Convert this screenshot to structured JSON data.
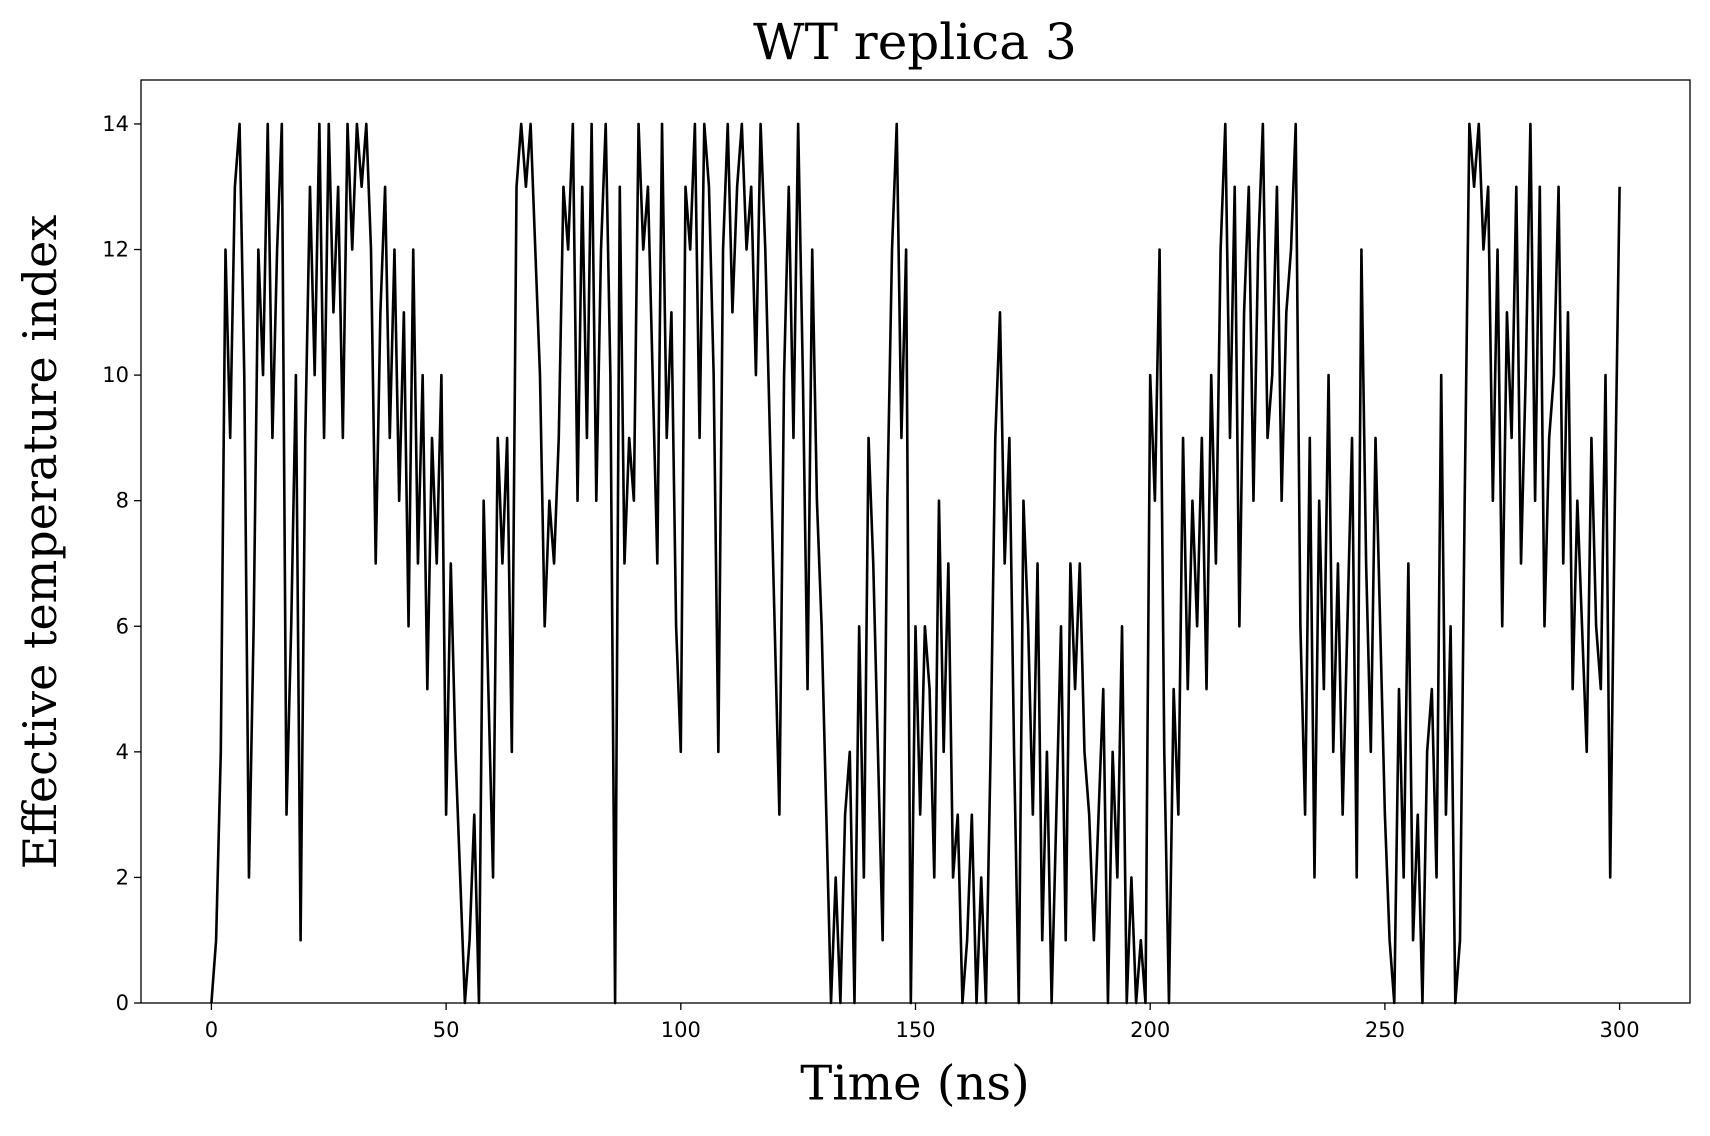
{
  "chart_data": {
    "type": "line",
    "title": "WT replica 3",
    "xlabel": "Time (ns)",
    "ylabel": "Effective temperature index",
    "color": "#000000",
    "xlim": [
      -15,
      315
    ],
    "ylim": [
      0,
      14.7
    ],
    "xticks": [
      0,
      50,
      100,
      150,
      200,
      250,
      300
    ],
    "yticks": [
      0,
      2,
      4,
      6,
      8,
      10,
      12,
      14
    ],
    "x": [
      0,
      1,
      2,
      3,
      4,
      5,
      6,
      7,
      8,
      9,
      10,
      11,
      12,
      13,
      14,
      15,
      16,
      17,
      18,
      19,
      20,
      21,
      22,
      23,
      24,
      25,
      26,
      27,
      28,
      29,
      30,
      31,
      32,
      33,
      34,
      35,
      36,
      37,
      38,
      39,
      40,
      41,
      42,
      43,
      44,
      45,
      46,
      47,
      48,
      49,
      50,
      51,
      52,
      53,
      54,
      55,
      56,
      57,
      58,
      59,
      60,
      61,
      62,
      63,
      64,
      65,
      66,
      67,
      68,
      69,
      70,
      71,
      72,
      73,
      74,
      75,
      76,
      77,
      78,
      79,
      80,
      81,
      82,
      83,
      84,
      85,
      86,
      87,
      88,
      89,
      90,
      91,
      92,
      93,
      94,
      95,
      96,
      97,
      98,
      99,
      100,
      101,
      102,
      103,
      104,
      105,
      106,
      107,
      108,
      109,
      110,
      111,
      112,
      113,
      114,
      115,
      116,
      117,
      118,
      119,
      120,
      121,
      122,
      123,
      124,
      125,
      126,
      127,
      128,
      129,
      130,
      131,
      132,
      133,
      134,
      135,
      136,
      137,
      138,
      139,
      140,
      141,
      142,
      143,
      144,
      145,
      146,
      147,
      148,
      149,
      150,
      151,
      152,
      153,
      154,
      155,
      156,
      157,
      158,
      159,
      160,
      161,
      162,
      163,
      164,
      165,
      166,
      167,
      168,
      169,
      170,
      171,
      172,
      173,
      174,
      175,
      176,
      177,
      178,
      179,
      180,
      181,
      182,
      183,
      184,
      185,
      186,
      187,
      188,
      189,
      190,
      191,
      192,
      193,
      194,
      195,
      196,
      197,
      198,
      199,
      200,
      201,
      202,
      203,
      204,
      205,
      206,
      207,
      208,
      209,
      210,
      211,
      212,
      213,
      214,
      215,
      216,
      217,
      218,
      219,
      220,
      221,
      222,
      223,
      224,
      225,
      226,
      227,
      228,
      229,
      230,
      231,
      232,
      233,
      234,
      235,
      236,
      237,
      238,
      239,
      240,
      241,
      242,
      243,
      244,
      245,
      246,
      247,
      248,
      249,
      250,
      251,
      252,
      253,
      254,
      255,
      256,
      257,
      258,
      259,
      260,
      261,
      262,
      263,
      264,
      265,
      266,
      267,
      268,
      269,
      270,
      271,
      272,
      273,
      274,
      275,
      276,
      277,
      278,
      279,
      280,
      281,
      282,
      283,
      284,
      285,
      286,
      287,
      288,
      289,
      290,
      291,
      292,
      293,
      294,
      295,
      296,
      297,
      298,
      299,
      300
    ],
    "values": [
      0,
      1,
      4,
      12,
      9,
      13,
      14,
      10,
      2,
      6,
      12,
      10,
      14,
      9,
      12,
      14,
      3,
      6,
      10,
      1,
      9,
      13,
      10,
      14,
      9,
      14,
      11,
      13,
      9,
      14,
      12,
      14,
      13,
      14,
      12,
      7,
      11,
      13,
      9,
      12,
      8,
      11,
      6,
      12,
      7,
      10,
      5,
      9,
      7,
      10,
      3,
      7,
      4,
      2,
      0,
      1,
      3,
      0,
      8,
      5,
      2,
      9,
      7,
      9,
      4,
      13,
      14,
      13,
      14,
      12,
      10,
      6,
      8,
      7,
      9,
      13,
      12,
      14,
      8,
      13,
      9,
      14,
      8,
      12,
      14,
      10,
      0,
      13,
      7,
      9,
      8,
      14,
      12,
      13,
      10,
      7,
      14,
      9,
      11,
      6,
      4,
      13,
      12,
      14,
      9,
      14,
      13,
      10,
      4,
      12,
      14,
      11,
      13,
      14,
      12,
      13,
      10,
      14,
      12,
      9,
      6,
      3,
      10,
      13,
      9,
      14,
      10,
      5,
      12,
      8,
      6,
      3,
      0,
      2,
      0,
      3,
      4,
      0,
      6,
      2,
      9,
      7,
      4,
      1,
      8,
      12,
      14,
      9,
      12,
      0,
      6,
      3,
      6,
      5,
      2,
      8,
      4,
      7,
      2,
      3,
      0,
      1,
      3,
      0,
      2,
      0,
      4,
      9,
      11,
      7,
      9,
      4,
      0,
      8,
      6,
      3,
      7,
      1,
      4,
      0,
      3,
      6,
      1,
      7,
      5,
      7,
      4,
      3,
      1,
      3,
      5,
      0,
      4,
      2,
      6,
      0,
      2,
      0,
      1,
      0,
      10,
      8,
      12,
      4,
      0,
      5,
      3,
      9,
      5,
      8,
      6,
      9,
      5,
      10,
      7,
      12,
      14,
      9,
      13,
      6,
      11,
      13,
      8,
      12,
      14,
      9,
      10,
      13,
      8,
      11,
      12,
      14,
      6,
      3,
      9,
      2,
      8,
      5,
      10,
      4,
      7,
      3,
      6,
      9,
      2,
      12,
      7,
      4,
      9,
      6,
      3,
      1,
      0,
      5,
      2,
      7,
      1,
      3,
      0,
      4,
      5,
      2,
      10,
      3,
      6,
      0,
      1,
      8,
      14,
      13,
      14,
      12,
      13,
      8,
      12,
      6,
      11,
      9,
      13,
      7,
      10,
      14,
      8,
      13,
      6,
      9,
      10,
      13,
      7,
      11,
      5,
      8,
      6,
      4,
      9,
      6,
      5,
      10,
      2,
      8,
      13
    ]
  }
}
